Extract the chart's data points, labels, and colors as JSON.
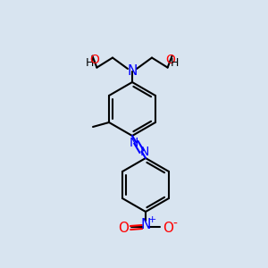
{
  "background_color": "#d8e4f0",
  "bond_color": "#000000",
  "atom_N_color": "#0000ff",
  "atom_O_color": "#ff0000",
  "atom_C_color": "#000000",
  "label_H": "H",
  "label_O": "O",
  "label_N": "N",
  "label_plus": "+",
  "label_minus": "-"
}
